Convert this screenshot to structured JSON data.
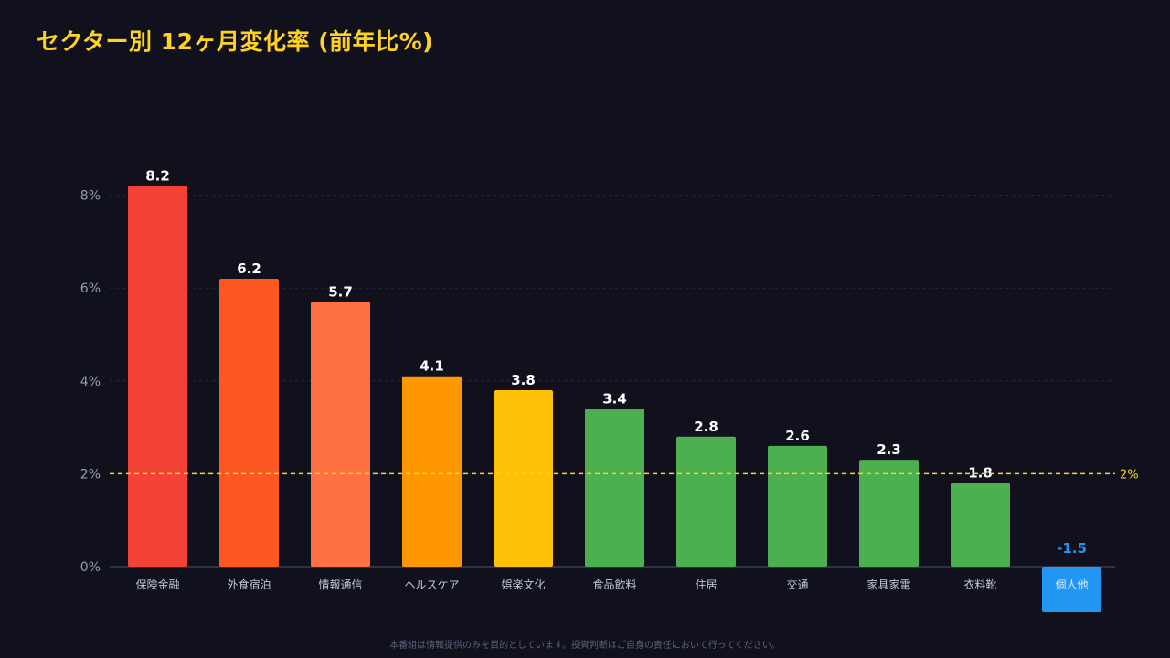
{
  "header": {
    "title": "セクター別 12ヶ月変化率 (前年比%)"
  },
  "footer": {
    "disclaimer": "本番組は情報提供のみを目的としています。投資判断はご自身の責任において行ってください。"
  },
  "chart_data": {
    "type": "bar",
    "title": "セクター別 12ヶ月変化率 (前年比%)",
    "categories": [
      "保険金融",
      "外食宿泊",
      "情報通信",
      "ヘルスケア",
      "娯楽文化",
      "食品飲料",
      "住居",
      "交通",
      "家具家電",
      "衣料靴",
      "個人他"
    ],
    "values": [
      8.2,
      6.2,
      5.7,
      4.1,
      3.8,
      3.4,
      2.8,
      2.6,
      2.3,
      1.8,
      -1.5
    ],
    "value_labels": [
      "8.2",
      "6.2",
      "5.7",
      "4.1",
      "3.8",
      "3.4",
      "2.8",
      "2.6",
      "2.3",
      "1.8",
      "-1.5"
    ],
    "colors": [
      "#f44336",
      "#ff5722",
      "#ff7043",
      "#ff9800",
      "#ffc107",
      "#4caf50",
      "#4caf50",
      "#4caf50",
      "#4caf50",
      "#4caf50",
      "#2196f3"
    ],
    "yticks": [
      0,
      2,
      4,
      6,
      8
    ],
    "ytick_labels": [
      "0%",
      "2%",
      "4%",
      "6%",
      "8%"
    ],
    "ylim": [
      -1,
      8
    ],
    "grid": true,
    "reference_line": {
      "value": 2,
      "label": "2%",
      "color": "#ffd21e"
    },
    "xlabel": "",
    "ylabel": ""
  }
}
